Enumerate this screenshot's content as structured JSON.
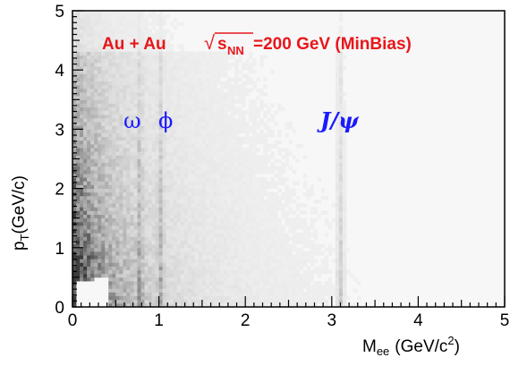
{
  "chart_data": {
    "type": "heatmap",
    "title": "",
    "xlabel": "M",
    "xlabel_sub": "ee",
    "xlabel_unit_pre": "(GeV/c",
    "xlabel_unit_sup": "2",
    "xlabel_unit_post": ")",
    "ylabel": "p",
    "ylabel_sub": "T",
    "ylabel_unit": "(GeV/c)",
    "xlim": [
      0,
      5
    ],
    "ylim": [
      0,
      5
    ],
    "xticks": [
      "0",
      "1",
      "2",
      "3",
      "4",
      "5"
    ],
    "yticks": [
      "0",
      "1",
      "2",
      "3",
      "4",
      "5"
    ],
    "colorscale": [
      "#f2f2f2",
      "#3a3a3a"
    ],
    "peaks_mass": [
      0.78,
      1.02,
      3.1
    ],
    "annotations": {
      "system": "Au + Au",
      "sqrt": "√",
      "s": "s",
      "s_sub": "NN",
      "energy": "=200 GeV (MinBias)",
      "omega": "ω",
      "phi": "ϕ",
      "jpsi": "J/ψ"
    }
  }
}
